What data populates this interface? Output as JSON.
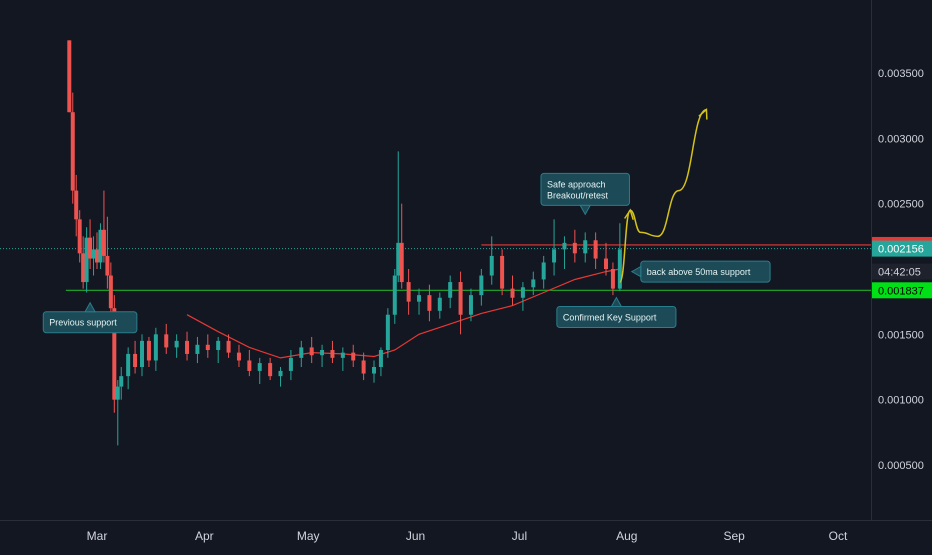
{
  "chart_data": {
    "type": "candlestick",
    "x_labels": [
      "Mar",
      "Apr",
      "May",
      "Jun",
      "Jul",
      "Aug",
      "Sep",
      "Oct"
    ],
    "y_ticks": [
      0.0035,
      0.003,
      0.0025,
      0.0015,
      0.001,
      0.0005
    ],
    "y_tick_labels": [
      "0.003500",
      "0.003000",
      "0.002500",
      "0.001500",
      "0.001000",
      "0.000500"
    ],
    "ylim": [
      5e-05,
      0.00375
    ],
    "grid": false,
    "candles": [
      {
        "date": "Feb 21",
        "o": 0.00375,
        "h": 0.00375,
        "l": 0.0032,
        "c": 0.0032
      },
      {
        "date": "Feb 22",
        "o": 0.0032,
        "h": 0.00335,
        "l": 0.0025,
        "c": 0.0026
      },
      {
        "date": "Feb 23",
        "o": 0.0026,
        "h": 0.00272,
        "l": 0.00225,
        "c": 0.00238
      },
      {
        "date": "Feb 24",
        "o": 0.00238,
        "h": 0.00245,
        "l": 0.00205,
        "c": 0.00212
      },
      {
        "date": "Feb 25",
        "o": 0.00212,
        "h": 0.00225,
        "l": 0.00185,
        "c": 0.0019
      },
      {
        "date": "Feb 26",
        "o": 0.0019,
        "h": 0.00232,
        "l": 0.00182,
        "c": 0.00224
      },
      {
        "date": "Feb 27",
        "o": 0.00224,
        "h": 0.00238,
        "l": 0.002,
        "c": 0.00208
      },
      {
        "date": "Feb 28",
        "o": 0.00208,
        "h": 0.00225,
        "l": 0.00195,
        "c": 0.00215
      },
      {
        "date": "Mar 1",
        "o": 0.00215,
        "h": 0.00228,
        "l": 0.002,
        "c": 0.00205
      },
      {
        "date": "Mar 2",
        "o": 0.00205,
        "h": 0.00235,
        "l": 0.002,
        "c": 0.0023
      },
      {
        "date": "Mar 3",
        "o": 0.0023,
        "h": 0.0026,
        "l": 0.00205,
        "c": 0.0021
      },
      {
        "date": "Mar 4",
        "o": 0.0021,
        "h": 0.0024,
        "l": 0.00185,
        "c": 0.00195
      },
      {
        "date": "Mar 5",
        "o": 0.00195,
        "h": 0.00205,
        "l": 0.0016,
        "c": 0.0017
      },
      {
        "date": "Mar 6",
        "o": 0.0017,
        "h": 0.0018,
        "l": 0.0009,
        "c": 0.001
      },
      {
        "date": "Mar 7",
        "o": 0.001,
        "h": 0.00115,
        "l": 0.00065,
        "c": 0.0011
      },
      {
        "date": "Mar 8",
        "o": 0.0011,
        "h": 0.00125,
        "l": 0.001,
        "c": 0.00118
      },
      {
        "date": "Mar 10",
        "o": 0.00118,
        "h": 0.0014,
        "l": 0.00108,
        "c": 0.00135
      },
      {
        "date": "Mar 12",
        "o": 0.00135,
        "h": 0.00145,
        "l": 0.0012,
        "c": 0.00125
      },
      {
        "date": "Mar 14",
        "o": 0.00125,
        "h": 0.0015,
        "l": 0.00118,
        "c": 0.00145
      },
      {
        "date": "Mar 16",
        "o": 0.00145,
        "h": 0.00148,
        "l": 0.00125,
        "c": 0.0013
      },
      {
        "date": "Mar 18",
        "o": 0.0013,
        "h": 0.00155,
        "l": 0.00122,
        "c": 0.0015
      },
      {
        "date": "Mar 21",
        "o": 0.0015,
        "h": 0.00158,
        "l": 0.00135,
        "c": 0.0014
      },
      {
        "date": "Mar 24",
        "o": 0.0014,
        "h": 0.0015,
        "l": 0.00132,
        "c": 0.00145
      },
      {
        "date": "Mar 27",
        "o": 0.00145,
        "h": 0.00152,
        "l": 0.0013,
        "c": 0.00135
      },
      {
        "date": "Mar 30",
        "o": 0.00135,
        "h": 0.00148,
        "l": 0.00128,
        "c": 0.00142
      },
      {
        "date": "Apr 2",
        "o": 0.00142,
        "h": 0.0015,
        "l": 0.00132,
        "c": 0.00138
      },
      {
        "date": "Apr 5",
        "o": 0.00138,
        "h": 0.00148,
        "l": 0.00128,
        "c": 0.00145
      },
      {
        "date": "Apr 8",
        "o": 0.00145,
        "h": 0.0015,
        "l": 0.00132,
        "c": 0.00136
      },
      {
        "date": "Apr 11",
        "o": 0.00136,
        "h": 0.00142,
        "l": 0.00125,
        "c": 0.0013
      },
      {
        "date": "Apr 14",
        "o": 0.0013,
        "h": 0.00138,
        "l": 0.00118,
        "c": 0.00122
      },
      {
        "date": "Apr 17",
        "o": 0.00122,
        "h": 0.00132,
        "l": 0.00112,
        "c": 0.00128
      },
      {
        "date": "Apr 20",
        "o": 0.00128,
        "h": 0.00132,
        "l": 0.00115,
        "c": 0.00118
      },
      {
        "date": "Apr 23",
        "o": 0.00118,
        "h": 0.00125,
        "l": 0.0011,
        "c": 0.00122
      },
      {
        "date": "Apr 26",
        "o": 0.00122,
        "h": 0.00138,
        "l": 0.00115,
        "c": 0.00132
      },
      {
        "date": "Apr 29",
        "o": 0.00132,
        "h": 0.00145,
        "l": 0.00125,
        "c": 0.0014
      },
      {
        "date": "May 2",
        "o": 0.0014,
        "h": 0.00148,
        "l": 0.00128,
        "c": 0.00134
      },
      {
        "date": "May 5",
        "o": 0.00134,
        "h": 0.00142,
        "l": 0.00125,
        "c": 0.00138
      },
      {
        "date": "May 8",
        "o": 0.00138,
        "h": 0.00145,
        "l": 0.00128,
        "c": 0.00132
      },
      {
        "date": "May 11",
        "o": 0.00132,
        "h": 0.0014,
        "l": 0.00122,
        "c": 0.00136
      },
      {
        "date": "May 14",
        "o": 0.00136,
        "h": 0.00142,
        "l": 0.00125,
        "c": 0.0013
      },
      {
        "date": "May 17",
        "o": 0.0013,
        "h": 0.00136,
        "l": 0.00115,
        "c": 0.0012
      },
      {
        "date": "May 20",
        "o": 0.0012,
        "h": 0.0013,
        "l": 0.00113,
        "c": 0.00125
      },
      {
        "date": "May 22",
        "o": 0.00125,
        "h": 0.0014,
        "l": 0.00118,
        "c": 0.00138
      },
      {
        "date": "May 24",
        "o": 0.00138,
        "h": 0.0017,
        "l": 0.00132,
        "c": 0.00165
      },
      {
        "date": "May 26",
        "o": 0.00165,
        "h": 0.002,
        "l": 0.00158,
        "c": 0.00195
      },
      {
        "date": "May 27",
        "o": 0.00195,
        "h": 0.0029,
        "l": 0.0019,
        "c": 0.0022
      },
      {
        "date": "May 28",
        "o": 0.0022,
        "h": 0.0025,
        "l": 0.00185,
        "c": 0.0019
      },
      {
        "date": "May 30",
        "o": 0.0019,
        "h": 0.002,
        "l": 0.00165,
        "c": 0.00175
      },
      {
        "date": "Jun 2",
        "o": 0.00175,
        "h": 0.00185,
        "l": 0.00165,
        "c": 0.0018
      },
      {
        "date": "Jun 5",
        "o": 0.0018,
        "h": 0.00188,
        "l": 0.0016,
        "c": 0.00168
      },
      {
        "date": "Jun 8",
        "o": 0.00168,
        "h": 0.00182,
        "l": 0.00162,
        "c": 0.00178
      },
      {
        "date": "Jun 11",
        "o": 0.00178,
        "h": 0.00195,
        "l": 0.0017,
        "c": 0.0019
      },
      {
        "date": "Jun 14",
        "o": 0.0019,
        "h": 0.00198,
        "l": 0.0015,
        "c": 0.00165
      },
      {
        "date": "Jun 17",
        "o": 0.00165,
        "h": 0.00185,
        "l": 0.0016,
        "c": 0.0018
      },
      {
        "date": "Jun 20",
        "o": 0.0018,
        "h": 0.002,
        "l": 0.00172,
        "c": 0.00195
      },
      {
        "date": "Jun 23",
        "o": 0.00195,
        "h": 0.00225,
        "l": 0.00188,
        "c": 0.0021
      },
      {
        "date": "Jun 26",
        "o": 0.0021,
        "h": 0.00215,
        "l": 0.0018,
        "c": 0.00185
      },
      {
        "date": "Jun 29",
        "o": 0.00185,
        "h": 0.00195,
        "l": 0.00172,
        "c": 0.00178
      },
      {
        "date": "Jul 2",
        "o": 0.00178,
        "h": 0.0019,
        "l": 0.00168,
        "c": 0.00186
      },
      {
        "date": "Jul 5",
        "o": 0.00186,
        "h": 0.00198,
        "l": 0.0018,
        "c": 0.00192
      },
      {
        "date": "Jul 8",
        "o": 0.00192,
        "h": 0.0021,
        "l": 0.00185,
        "c": 0.00205
      },
      {
        "date": "Jul 11",
        "o": 0.00205,
        "h": 0.00238,
        "l": 0.00195,
        "c": 0.00215
      },
      {
        "date": "Jul 14",
        "o": 0.00215,
        "h": 0.00225,
        "l": 0.002,
        "c": 0.0022
      },
      {
        "date": "Jul 17",
        "o": 0.0022,
        "h": 0.0023,
        "l": 0.00205,
        "c": 0.00212
      },
      {
        "date": "Jul 20",
        "o": 0.00212,
        "h": 0.00228,
        "l": 0.00205,
        "c": 0.00222
      },
      {
        "date": "Jul 23",
        "o": 0.00222,
        "h": 0.00228,
        "l": 0.002,
        "c": 0.00208
      },
      {
        "date": "Jul 26",
        "o": 0.00208,
        "h": 0.0022,
        "l": 0.00195,
        "c": 0.002
      },
      {
        "date": "Jul 28",
        "o": 0.002,
        "h": 0.00205,
        "l": 0.0018,
        "c": 0.00185
      },
      {
        "date": "Jul 30",
        "o": 0.00185,
        "h": 0.00235,
        "l": 0.00183,
        "c": 0.00215
      }
    ],
    "ma50": [
      {
        "date": "Mar 27",
        "v": 0.00165
      },
      {
        "date": "Apr 5",
        "v": 0.00152
      },
      {
        "date": "Apr 14",
        "v": 0.0014
      },
      {
        "date": "Apr 23",
        "v": 0.00132
      },
      {
        "date": "May 2",
        "v": 0.00136
      },
      {
        "date": "May 11",
        "v": 0.00135
      },
      {
        "date": "May 20",
        "v": 0.00133
      },
      {
        "date": "May 26",
        "v": 0.00138
      },
      {
        "date": "Jun 2",
        "v": 0.0015
      },
      {
        "date": "Jun 11",
        "v": 0.00158
      },
      {
        "date": "Jun 20",
        "v": 0.00166
      },
      {
        "date": "Jun 29",
        "v": 0.00172
      },
      {
        "date": "Jul 8",
        "v": 0.00182
      },
      {
        "date": "Jul 17",
        "v": 0.00192
      },
      {
        "date": "Jul 26",
        "v": 0.00198
      },
      {
        "date": "Jul 30",
        "v": 0.002
      }
    ],
    "lines": [
      {
        "name": "resistance",
        "value": 0.002184,
        "color": "#e53935",
        "from": "Jun 20"
      },
      {
        "name": "support",
        "value": 0.001837,
        "color": "#1fae2a",
        "from": "Feb 20"
      },
      {
        "name": "last",
        "value": 0.002156,
        "color": "#26a69a",
        "dotted": true
      }
    ],
    "price_badges": [
      {
        "label": "0.002184",
        "value": 0.002184,
        "bg": "#e53935",
        "fg": "#ffffff"
      },
      {
        "label": "0.002156",
        "value": 0.002156,
        "bg": "#26a69a",
        "fg": "#ffffff"
      },
      {
        "label": "04:42:05",
        "value": 0.00198,
        "bg": "#1e222d",
        "fg": "#d1d4dc"
      },
      {
        "label": "0.001837",
        "value": 0.001837,
        "bg": "#00e016",
        "fg": "#000000"
      }
    ],
    "annotations": [
      {
        "name": "previous-support",
        "text": [
          "Previous support"
        ],
        "anchor": "Feb 27",
        "value": 0.00178,
        "pointer": "up"
      },
      {
        "name": "safe-approach",
        "text": [
          "Safe approach",
          "Breakout/retest"
        ],
        "anchor": "Jul 20",
        "value": 0.00238,
        "pointer": "down"
      },
      {
        "name": "back-above-50ma",
        "text": [
          "back above 50ma support"
        ],
        "anchor": "Aug 1",
        "value": 0.00198,
        "pointer": "left"
      },
      {
        "name": "confirmed-key-support",
        "text": [
          "Confirmed Key Support"
        ],
        "anchor": "Jul 29",
        "value": 0.00182,
        "pointer": "up"
      }
    ],
    "projection": [
      {
        "date": "Jul 30",
        "v": 0.0019
      },
      {
        "date": "Aug 2",
        "v": 0.00245
      },
      {
        "date": "Aug 5",
        "v": 0.00228
      },
      {
        "date": "Aug 10",
        "v": 0.00225
      },
      {
        "date": "Aug 16",
        "v": 0.0026
      },
      {
        "date": "Aug 24",
        "v": 0.00322
      }
    ],
    "colors": {
      "background": "#131722",
      "up": "#26a69a",
      "down": "#ef5350",
      "ma": "#e53935",
      "projection": "#d4c21a",
      "text": "#d1d4dc",
      "annotation_bg": "#1c4b57",
      "annotation_border": "#2a7d8c"
    }
  }
}
